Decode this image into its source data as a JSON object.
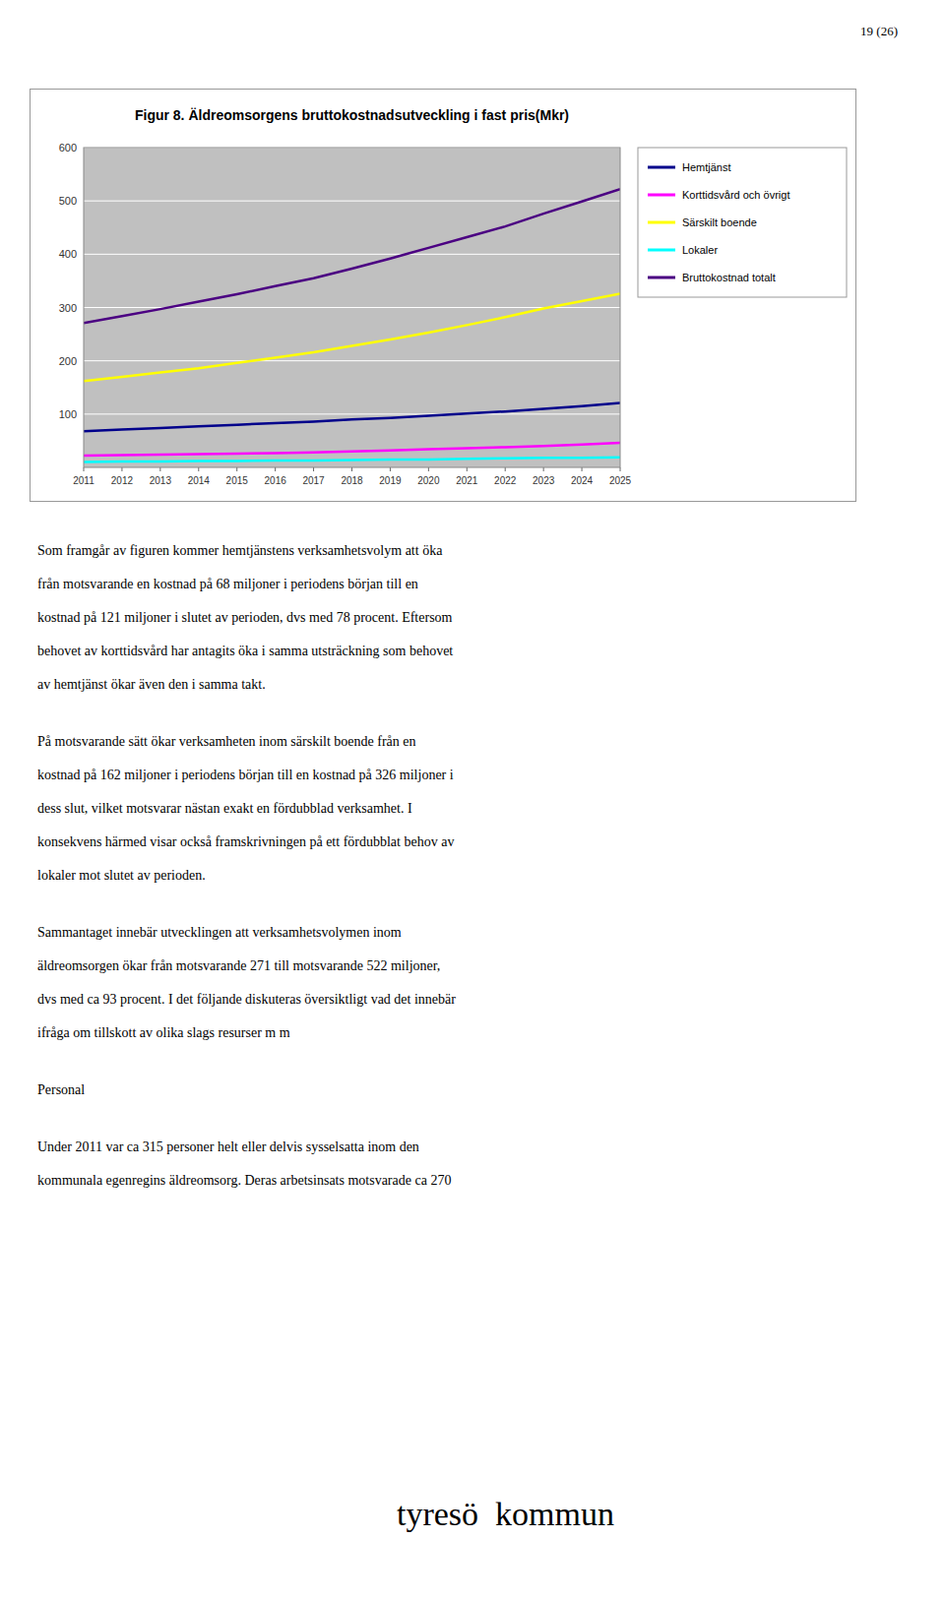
{
  "chart_data": {
    "type": "line",
    "title": "Figur 8. Äldreomsorgens bruttokostnadsutveckling i fast pris(Mkr)",
    "x": [
      2011,
      2012,
      2013,
      2014,
      2015,
      2016,
      2017,
      2018,
      2019,
      2020,
      2021,
      2022,
      2023,
      2024,
      2025
    ],
    "series": [
      {
        "name": "Hemtjänst",
        "color": "#00008B",
        "values": [
          68,
          71,
          74,
          77,
          80,
          83,
          86,
          90,
          93,
          97,
          101,
          105,
          110,
          115,
          121
        ]
      },
      {
        "name": "Korttidsvård och övrigt",
        "color": "#FF00FF",
        "values": [
          22,
          23,
          24,
          25,
          26,
          27,
          28,
          30,
          32,
          34,
          36,
          38,
          40,
          43,
          46
        ]
      },
      {
        "name": "Särskilt boende",
        "color": "#FFFF00",
        "values": [
          162,
          170,
          178,
          186,
          196,
          206,
          216,
          228,
          240,
          253,
          267,
          282,
          298,
          312,
          326
        ]
      },
      {
        "name": "Lokaler",
        "color": "#00FFFF",
        "values": [
          10,
          11,
          11,
          12,
          12,
          13,
          13,
          14,
          15,
          15,
          16,
          17,
          18,
          18,
          19
        ]
      },
      {
        "name": "Bruttokostnad totalt",
        "color": "#4B0082",
        "values": [
          271,
          284,
          297,
          311,
          325,
          340,
          355,
          373,
          392,
          412,
          432,
          452,
          476,
          499,
          522
        ]
      }
    ],
    "xlim": [
      2011,
      2025
    ],
    "xticks": [
      2011,
      2012,
      2013,
      2014,
      2015,
      2016,
      2017,
      2018,
      2019,
      2020,
      2021,
      2022,
      2023,
      2024,
      2025
    ],
    "ylim": [
      0,
      600
    ],
    "yticks": [
      100,
      200,
      300,
      400,
      500,
      600
    ],
    "grid": true,
    "legend": "right"
  },
  "page_number": "19 (26)",
  "paragraphs": [
    [
      "Som framgår av figuren kommer hemtjänstens verksamhetsvolym att öka",
      "från motsvarande en kostnad på 68 miljoner i periodens början till en",
      "kostnad på 121 miljoner i slutet av perioden, dvs med 78 procent. Eftersom",
      "behovet av korttidsvård har antagits öka i samma utsträckning som behovet",
      "av hemtjänst ökar även den i samma takt."
    ],
    [
      "På motsvarande sätt ökar verksamheten inom särskilt boende från en",
      "kostnad på 162 miljoner i periodens början till en kostnad på 326 miljoner i",
      "dess slut, vilket motsvarar nästan exakt en fördubblad verksamhet. I",
      "konsekvens härmed visar också framskrivningen på ett fördubblat behov av",
      "lokaler mot slutet av perioden."
    ],
    [
      "Sammantaget innebär utvecklingen att verksamhetsvolymen inom",
      "äldreomsorgen ökar från motsvarande 271 till motsvarande 522 miljoner,",
      "dvs med ca 93 procent. I det följande diskuteras översiktligt vad det innebär",
      "ifråga om tillskott av olika slags resurser m m"
    ],
    [
      "Personal"
    ],
    [
      "Under 2011 var ca 315 personer helt eller delvis sysselsatta inom den",
      "kommunala egenregins äldreomsorg. Deras arbetsinsats motsvarade ca 270"
    ]
  ],
  "logo": "tyresö  kommun"
}
